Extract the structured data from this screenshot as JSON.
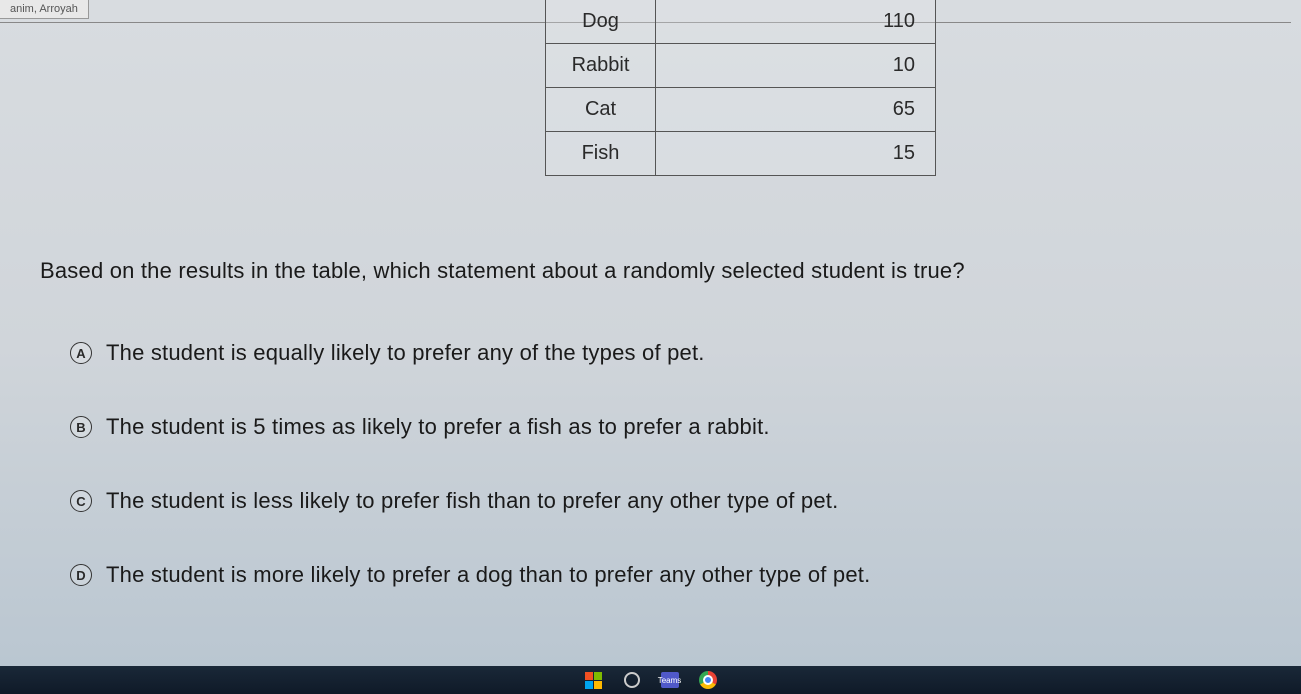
{
  "tab_label": "anim, Arroyah",
  "table": {
    "rows": [
      {
        "label": "Dog",
        "value": "110"
      },
      {
        "label": "Rabbit",
        "value": "10"
      },
      {
        "label": "Cat",
        "value": "65"
      },
      {
        "label": "Fish",
        "value": "15"
      }
    ],
    "border_color": "#555555",
    "font_size": 20,
    "label_align": "center",
    "value_align": "right"
  },
  "question": "Based on the results in the table, which statement about a randomly selected student is true?",
  "options": [
    {
      "badge": "A",
      "text": "The student is equally likely to prefer any of the types of pet."
    },
    {
      "badge": "B",
      "text": "The student is 5 times as likely to prefer a fish as to prefer a rabbit."
    },
    {
      "badge": "C",
      "text": "The student is less likely to prefer fish than to prefer any other type of pet."
    },
    {
      "badge": "D",
      "text": "The student is more likely to prefer a dog than to prefer any other type of pet."
    }
  ],
  "colors": {
    "background_top": "#d8dce0",
    "background_bottom": "#b8c5d0",
    "text": "#1a1a1a",
    "taskbar": "#0f1a28"
  },
  "typography": {
    "question_fontsize": 22,
    "option_fontsize": 22,
    "font_family": "Verdana"
  },
  "taskbar": {
    "teams_label": "Teams"
  }
}
